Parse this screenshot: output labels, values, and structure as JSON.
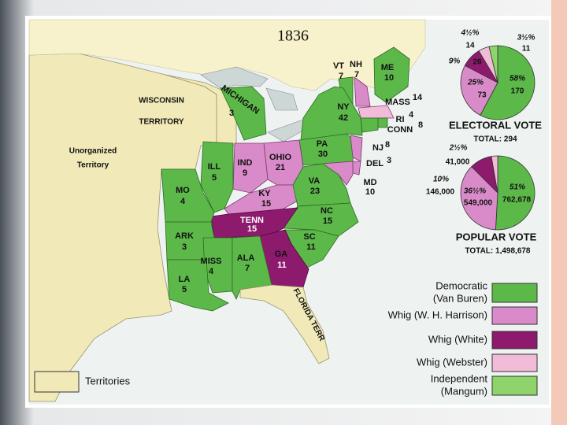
{
  "title": "1836",
  "territories": [
    "WISCONSIN",
    "TERRITORY",
    "Unorganized",
    "Territory",
    "FLORIDA TERR"
  ],
  "states": [
    {
      "name": "ME",
      "votes": "10"
    },
    {
      "name": "VT",
      "votes": "7"
    },
    {
      "name": "NH",
      "votes": "7"
    },
    {
      "name": "MASS",
      "votes": "14"
    },
    {
      "name": "RI",
      "votes": "4"
    },
    {
      "name": "CONN",
      "votes": "8"
    },
    {
      "name": "NY",
      "votes": "42"
    },
    {
      "name": "NJ",
      "votes": "8"
    },
    {
      "name": "PA",
      "votes": "30"
    },
    {
      "name": "DEL",
      "votes": "3"
    },
    {
      "name": "MD",
      "votes": "10"
    },
    {
      "name": "VA",
      "votes": "23"
    },
    {
      "name": "NC",
      "votes": "15"
    },
    {
      "name": "SC",
      "votes": "11"
    },
    {
      "name": "GA",
      "votes": "11"
    },
    {
      "name": "TENN",
      "votes": "15"
    },
    {
      "name": "KY",
      "votes": "15"
    },
    {
      "name": "OHIO",
      "votes": "21"
    },
    {
      "name": "IND",
      "votes": "9"
    },
    {
      "name": "ILL",
      "votes": "5"
    },
    {
      "name": "MICHIGAN",
      "votes": "3"
    },
    {
      "name": "MO",
      "votes": "4"
    },
    {
      "name": "ARK",
      "votes": "3"
    },
    {
      "name": "MISS",
      "votes": "4"
    },
    {
      "name": "ALA",
      "votes": "7"
    },
    {
      "name": "LA",
      "votes": "5"
    }
  ],
  "electoral_vote": {
    "type": "pie",
    "title": "ELECTORAL VOTE",
    "total": "TOTAL: 294",
    "values": [
      170,
      73,
      26,
      14,
      11
    ],
    "percents": [
      "58%",
      "25%",
      "9%",
      "4½%",
      "3½%"
    ],
    "colors": [
      "#5cb848",
      "#d98ac9",
      "#8e1a6e",
      "#f1bcd8",
      "#8fd46a"
    ]
  },
  "popular_vote": {
    "type": "pie",
    "title": "POPULAR VOTE",
    "total": "TOTAL: 1,498,678",
    "values": [
      762678,
      549000,
      146000,
      41000
    ],
    "value_labels": [
      "762,678",
      "549,000",
      "146,000",
      "41,000"
    ],
    "percents": [
      "51%",
      "36½%",
      "10%",
      "2½%"
    ],
    "colors": [
      "#5cb848",
      "#d98ac9",
      "#8e1a6e",
      "#f1bcd8"
    ]
  },
  "legend": [
    {
      "label": [
        "Democratic",
        "(Van Buren)"
      ],
      "color": "#5cb848"
    },
    {
      "label": [
        "Whig (W. H. Harrison)"
      ],
      "color": "#d98ac9"
    },
    {
      "label": [
        "Whig (White)"
      ],
      "color": "#8e1a6e"
    },
    {
      "label": [
        "Whig (Webster)"
      ],
      "color": "#f1bcd8"
    },
    {
      "label": [
        "Independent",
        "(Mangum)"
      ],
      "color": "#8fd46a"
    },
    {
      "label": [
        "Territories"
      ],
      "color": "#f1eab8"
    }
  ]
}
